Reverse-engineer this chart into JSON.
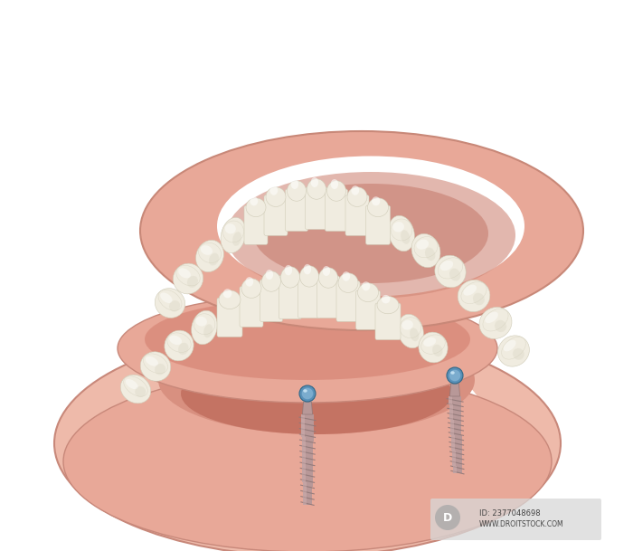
{
  "background_color": "#ffffff",
  "watermark_text": "ID: 2377048698\nWWW.DROITSTOCK.COM",
  "gum_base_color": "#e8a898",
  "gum_base_edge": "#c8887a",
  "gum_inner_color": "#d07868",
  "gum_inner_dark": "#b86050",
  "tongue_color": "#b85850",
  "tongue_highlight": "#cc6a60",
  "tooth_color": "#f0ece0",
  "tooth_shadow": "#d0ccb8",
  "tooth_highlight": "#ffffff",
  "implant_body_color": "#b89898",
  "implant_thread_color": "#907878",
  "implant_light": "#d0b0b0",
  "ball_top_color": "#8ab8d8",
  "ball_mid_color": "#5890b8",
  "ball_dark_color": "#3068a0",
  "ball_highlight_color": "#c8e4f4",
  "upper_gum_color": "#e8a898",
  "upper_gum_edge": "#c88878",
  "upper_gum_inner": "#d08878",
  "lower_jaw_outer_color": "#eebaaa",
  "lower_jaw_inner_color": "#d89080"
}
